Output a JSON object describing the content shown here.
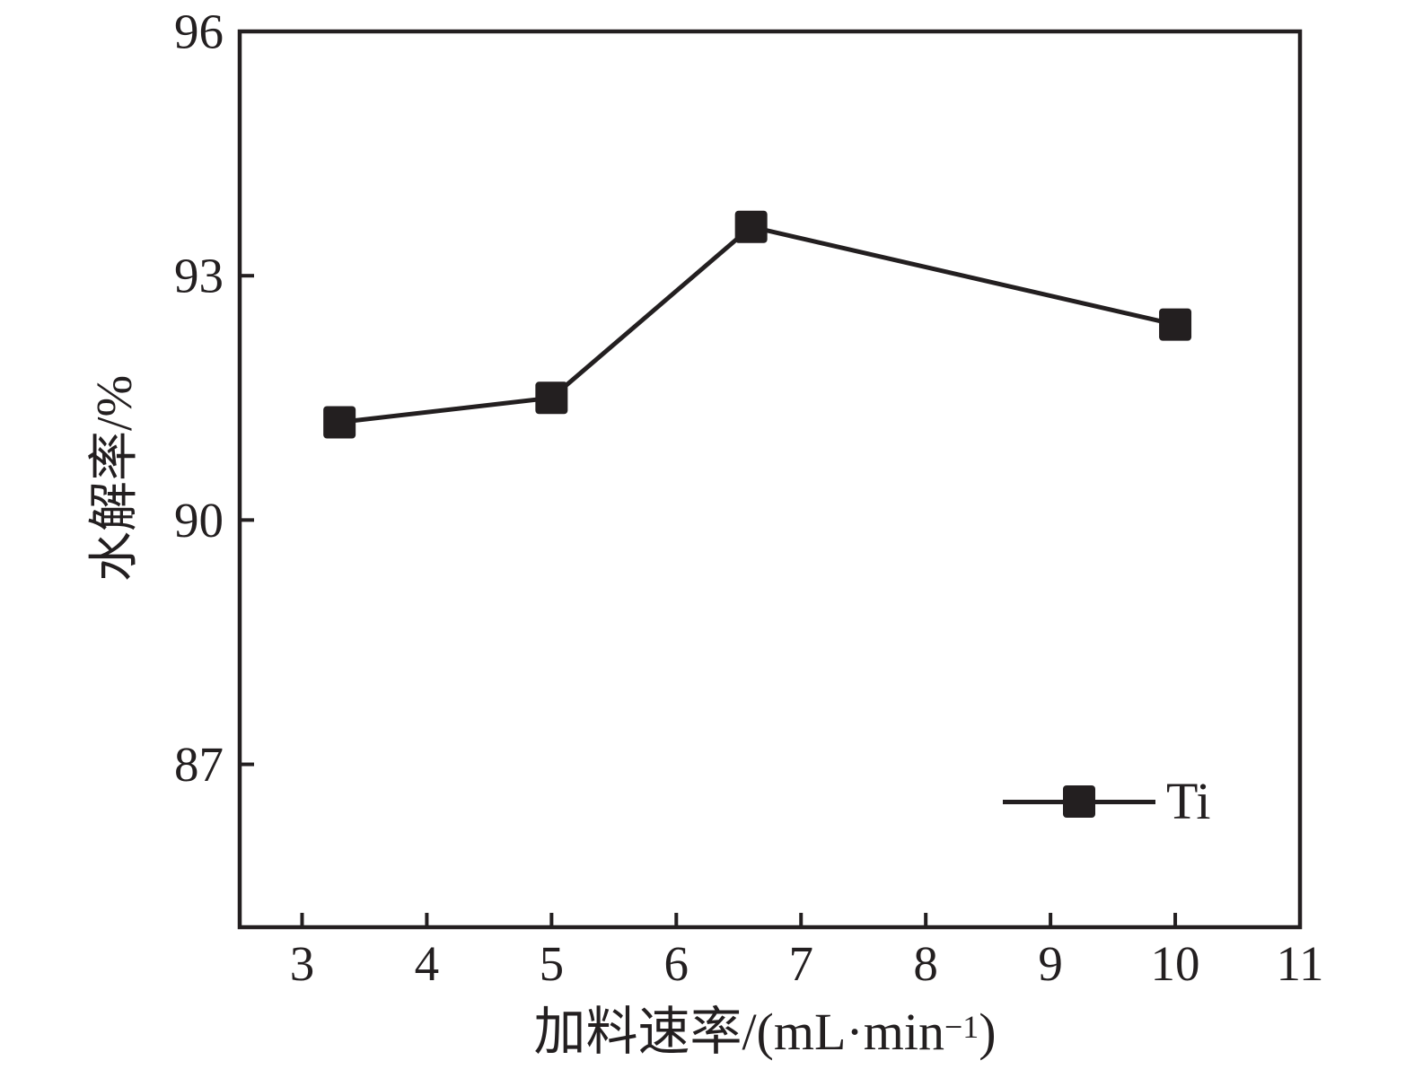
{
  "figure": {
    "background": "#ffffff",
    "ink_color": "#231f20"
  },
  "chart_data": {
    "type": "line",
    "title": "",
    "xlabel": "加料速率/(mL·min⁻¹)",
    "xlabel_parts": {
      "prefix": "加料速率/(mL·min",
      "sup": "−1",
      "suffix": ")"
    },
    "ylabel": "水解率/%",
    "xlim": [
      2.5,
      11
    ],
    "ylim": [
      85,
      96
    ],
    "xticks": [
      3,
      4,
      5,
      6,
      7,
      8,
      9,
      10,
      11
    ],
    "yticks": [
      87,
      90,
      93,
      96
    ],
    "grid": false,
    "legend": {
      "position": "lower-right",
      "entries": [
        "Ti"
      ]
    },
    "series": [
      {
        "name": "Ti",
        "marker": "square",
        "color": "#231f20",
        "x": [
          3.3,
          5.0,
          6.6,
          10.0
        ],
        "y": [
          91.2,
          91.5,
          93.6,
          92.4
        ]
      }
    ]
  }
}
